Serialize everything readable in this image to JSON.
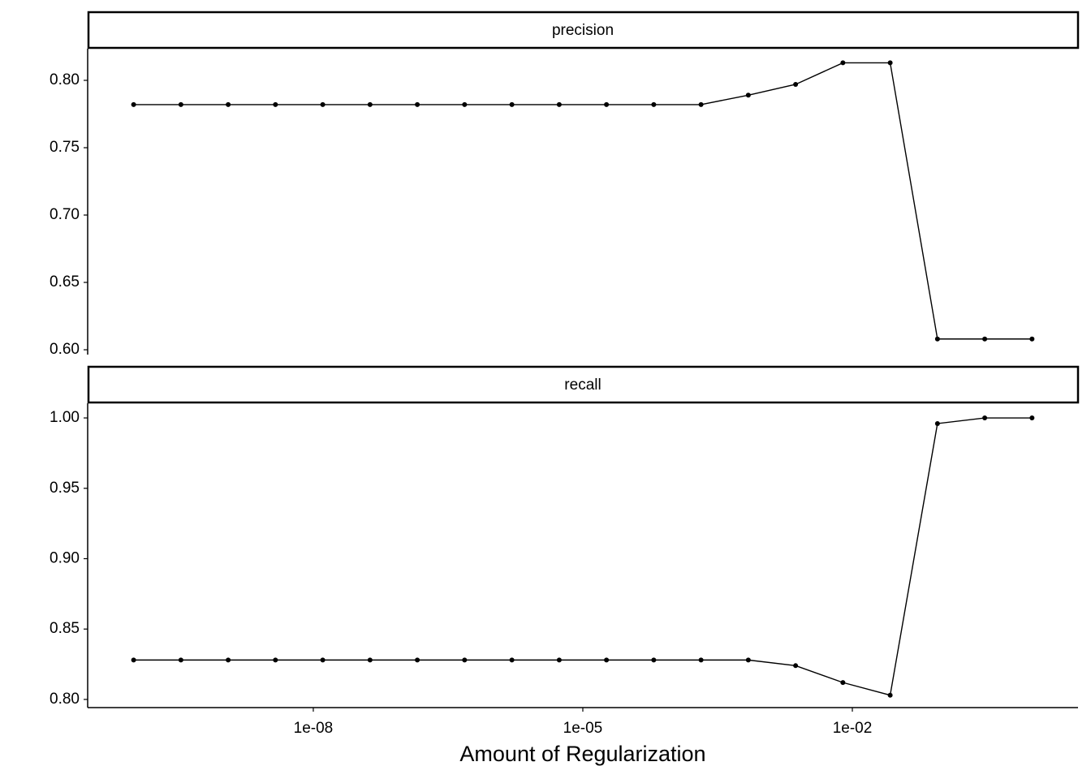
{
  "chart_data": [
    {
      "type": "line",
      "title": "precision",
      "x": [
        1e-10,
        3.36e-10,
        1.129e-09,
        3.79e-09,
        1.274e-08,
        4.28e-08,
        1.438e-07,
        4.83e-07,
        1.624e-06,
        5.46e-06,
        1.833e-05,
        6.16e-05,
        0.0002069,
        0.000695,
        0.002336,
        0.00785,
        0.02637,
        0.0886,
        0.2976,
        1
      ],
      "values": [
        0.782,
        0.782,
        0.782,
        0.782,
        0.782,
        0.782,
        0.782,
        0.782,
        0.782,
        0.782,
        0.782,
        0.782,
        0.782,
        0.789,
        0.797,
        0.813,
        0.813,
        0.608,
        0.608,
        0.608
      ],
      "color": "#000000",
      "xscale": "log",
      "xlim": [
        3.08e-11,
        3.25
      ],
      "ylim": [
        0.5964,
        0.8235
      ],
      "yticks": [
        {
          "value": 0.6,
          "label": "0.60"
        },
        0.65,
        {
          "value": 0.7,
          "label": "0.70"
        },
        0.75,
        {
          "value": 0.8,
          "label": "0.80"
        }
      ]
    },
    {
      "type": "line",
      "title": "recall",
      "x": [
        1e-10,
        3.36e-10,
        1.129e-09,
        3.79e-09,
        1.274e-08,
        4.28e-08,
        1.438e-07,
        4.83e-07,
        1.624e-06,
        5.46e-06,
        1.833e-05,
        6.16e-05,
        0.0002069,
        0.000695,
        0.002336,
        0.00785,
        0.02637,
        0.0886,
        0.2976,
        1
      ],
      "values": [
        0.828,
        0.828,
        0.828,
        0.828,
        0.828,
        0.828,
        0.828,
        0.828,
        0.828,
        0.828,
        0.828,
        0.828,
        0.828,
        0.828,
        0.824,
        0.812,
        0.803,
        0.996,
        1.0,
        1.0
      ],
      "color": "#000000",
      "xscale": "log",
      "xlim": [
        3.08e-11,
        3.25
      ],
      "ylim": [
        0.7942,
        1.0104
      ],
      "yticks": [
        {
          "value": 0.8,
          "label": "0.80"
        },
        0.85,
        {
          "value": 0.9,
          "label": "0.90"
        },
        0.95,
        {
          "value": 1.0,
          "label": "1.00"
        }
      ],
      "xticks": [
        {
          "value": 1e-08,
          "label": "1e-08"
        },
        {
          "value": 1e-05,
          "label": "1e-05"
        },
        {
          "value": 0.01,
          "label": "1e-02"
        }
      ],
      "xlabel": "Amount of Regularization"
    }
  ]
}
